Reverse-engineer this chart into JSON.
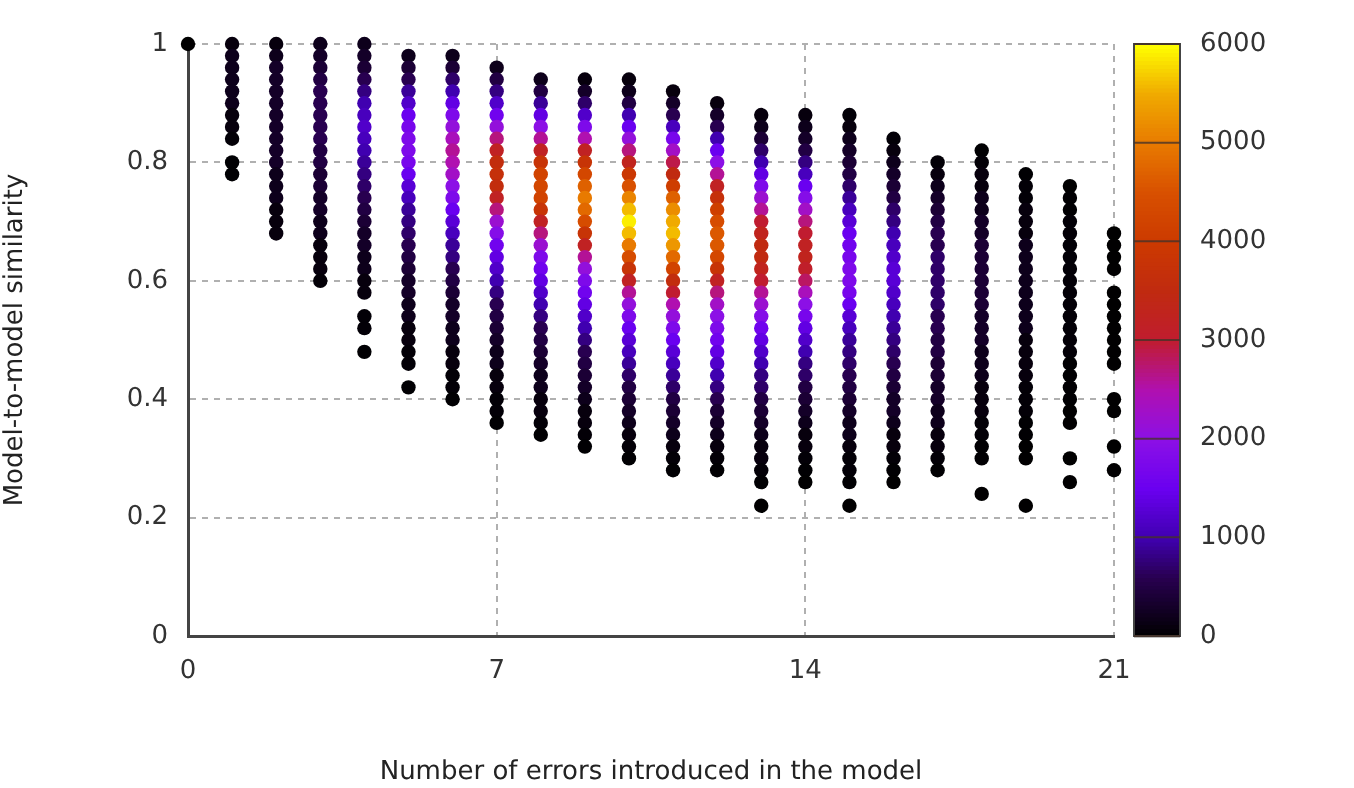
{
  "chart_data": {
    "type": "scatter",
    "xlabel": "Number of errors introduced in the model",
    "ylabel": "Model-to-model similarity",
    "xlim": [
      0,
      21
    ],
    "xticks": [
      0,
      7,
      14,
      21
    ],
    "ylim": [
      0,
      1
    ],
    "yticks": [
      0,
      {
        "value": 0.2,
        "label": "0.2"
      },
      {
        "value": 0.4,
        "label": "0.4"
      },
      {
        "value": 0.6,
        "label": "0.6"
      },
      {
        "value": 0.8,
        "label": "0.8"
      },
      1
    ],
    "grid": true,
    "marker": "circle",
    "clim": [
      0,
      6000
    ],
    "cticks": [
      0,
      1000,
      2000,
      3000,
      4000,
      5000,
      6000
    ],
    "x": [
      0,
      1,
      1,
      1,
      1,
      1,
      1,
      1,
      1,
      1,
      1,
      1,
      2,
      2,
      2,
      2,
      2,
      2,
      2,
      2,
      2,
      2,
      2,
      2,
      2,
      2,
      2,
      2,
      2,
      3,
      3,
      3,
      3,
      3,
      3,
      3,
      3,
      3,
      3,
      3,
      3,
      3,
      3,
      3,
      3,
      3,
      3,
      3,
      3,
      3,
      4,
      4,
      4,
      4,
      4,
      4,
      4,
      4,
      4,
      4,
      4,
      4,
      4,
      4,
      4,
      4,
      4,
      4,
      4,
      4,
      4,
      4,
      4,
      4,
      4,
      5,
      5,
      5,
      5,
      5,
      5,
      5,
      5,
      5,
      5,
      5,
      5,
      5,
      5,
      5,
      5,
      5,
      5,
      5,
      5,
      5,
      5,
      5,
      5,
      5,
      5,
      5,
      5,
      6,
      6,
      6,
      6,
      6,
      6,
      6,
      6,
      6,
      6,
      6,
      6,
      6,
      6,
      6,
      6,
      6,
      6,
      6,
      6,
      6,
      6,
      6,
      6,
      6,
      6,
      6,
      6,
      6,
      6,
      7,
      7,
      7,
      7,
      7,
      7,
      7,
      7,
      7,
      7,
      7,
      7,
      7,
      7,
      7,
      7,
      7,
      7,
      7,
      7,
      7,
      7,
      7,
      7,
      7,
      7,
      7,
      7,
      7,
      7,
      7,
      8,
      8,
      8,
      8,
      8,
      8,
      8,
      8,
      8,
      8,
      8,
      8,
      8,
      8,
      8,
      8,
      8,
      8,
      8,
      8,
      8,
      8,
      8,
      8,
      8,
      8,
      8,
      8,
      8,
      8,
      8,
      9,
      9,
      9,
      9,
      9,
      9,
      9,
      9,
      9,
      9,
      9,
      9,
      9,
      9,
      9,
      9,
      9,
      9,
      9,
      9,
      9,
      9,
      9,
      9,
      9,
      9,
      9,
      9,
      9,
      9,
      9,
      9,
      10,
      10,
      10,
      10,
      10,
      10,
      10,
      10,
      10,
      10,
      10,
      10,
      10,
      10,
      10,
      10,
      10,
      10,
      10,
      10,
      10,
      10,
      10,
      10,
      10,
      10,
      10,
      10,
      10,
      10,
      10,
      10,
      10,
      11,
      11,
      11,
      11,
      11,
      11,
      11,
      11,
      11,
      11,
      11,
      11,
      11,
      11,
      11,
      11,
      11,
      11,
      11,
      11,
      11,
      11,
      11,
      11,
      11,
      11,
      11,
      11,
      11,
      11,
      11,
      11,
      11,
      12,
      12,
      12,
      12,
      12,
      12,
      12,
      12,
      12,
      12,
      12,
      12,
      12,
      12,
      12,
      12,
      12,
      12,
      12,
      12,
      12,
      12,
      12,
      12,
      12,
      12,
      12,
      12,
      12,
      12,
      12,
      12,
      13,
      13,
      13,
      13,
      13,
      13,
      13,
      13,
      13,
      13,
      13,
      13,
      13,
      13,
      13,
      13,
      13,
      13,
      13,
      13,
      13,
      13,
      13,
      13,
      13,
      13,
      13,
      13,
      13,
      13,
      13,
      13,
      13,
      14,
      14,
      14,
      14,
      14,
      14,
      14,
      14,
      14,
      14,
      14,
      14,
      14,
      14,
      14,
      14,
      14,
      14,
      14,
      14,
      14,
      14,
      14,
      14,
      14,
      14,
      14,
      14,
      14,
      14,
      14,
      14,
      15,
      15,
      15,
      15,
      15,
      15,
      15,
      15,
      15,
      15,
      15,
      15,
      15,
      15,
      15,
      15,
      15,
      15,
      15,
      15,
      15,
      15,
      15,
      15,
      15,
      15,
      15,
      15,
      15,
      15,
      15,
      15,
      15,
      16,
      16,
      16,
      16,
      16,
      16,
      16,
      16,
      16,
      16,
      16,
      16,
      16,
      16,
      16,
      16,
      16,
      16,
      16,
      16,
      16,
      16,
      16,
      16,
      16,
      16,
      16,
      16,
      16,
      16,
      17,
      17,
      17,
      17,
      17,
      17,
      17,
      17,
      17,
      17,
      17,
      17,
      17,
      17,
      17,
      17,
      17,
      17,
      17,
      17,
      17,
      17,
      17,
      17,
      17,
      17,
      17,
      18,
      18,
      18,
      18,
      18,
      18,
      18,
      18,
      18,
      18,
      18,
      18,
      18,
      18,
      18,
      18,
      18,
      18,
      18,
      18,
      18,
      18,
      18,
      18,
      18,
      18,
      18,
      18,
      19,
      19,
      19,
      19,
      19,
      19,
      19,
      19,
      19,
      19,
      19,
      19,
      19,
      19,
      19,
      19,
      19,
      19,
      19,
      19,
      19,
      19,
      19,
      19,
      19,
      19,
      20,
      20,
      20,
      20,
      20,
      20,
      20,
      20,
      20,
      20,
      20,
      20,
      20,
      20,
      20,
      20,
      20,
      20,
      20,
      20,
      20,
      20,
      20,
      21,
      21,
      21,
      21,
      21,
      21,
      21,
      21,
      21,
      21,
      21,
      21,
      21,
      21,
      21
    ],
    "values": [
      1.0,
      1.0,
      0.98,
      0.96,
      0.94,
      0.92,
      0.9,
      0.88,
      0.86,
      0.84,
      0.8,
      0.78,
      1.0,
      0.98,
      0.96,
      0.94,
      0.92,
      0.9,
      0.88,
      0.86,
      0.84,
      0.82,
      0.8,
      0.78,
      0.76,
      0.74,
      0.72,
      0.7,
      0.68,
      1.0,
      0.98,
      0.96,
      0.94,
      0.92,
      0.9,
      0.88,
      0.86,
      0.84,
      0.82,
      0.8,
      0.78,
      0.76,
      0.74,
      0.72,
      0.7,
      0.68,
      0.66,
      0.64,
      0.62,
      0.6,
      1.0,
      0.98,
      0.96,
      0.94,
      0.92,
      0.9,
      0.88,
      0.86,
      0.84,
      0.82,
      0.8,
      0.78,
      0.76,
      0.74,
      0.72,
      0.7,
      0.68,
      0.66,
      0.64,
      0.62,
      0.6,
      0.58,
      0.54,
      0.52,
      0.48,
      0.98,
      0.96,
      0.94,
      0.92,
      0.9,
      0.88,
      0.86,
      0.84,
      0.82,
      0.8,
      0.78,
      0.76,
      0.74,
      0.72,
      0.7,
      0.68,
      0.66,
      0.64,
      0.62,
      0.6,
      0.58,
      0.56,
      0.54,
      0.52,
      0.5,
      0.48,
      0.46,
      0.42,
      0.98,
      0.96,
      0.94,
      0.92,
      0.9,
      0.88,
      0.86,
      0.84,
      0.82,
      0.8,
      0.78,
      0.76,
      0.74,
      0.72,
      0.7,
      0.68,
      0.66,
      0.64,
      0.62,
      0.6,
      0.58,
      0.56,
      0.54,
      0.52,
      0.5,
      0.48,
      0.46,
      0.44,
      0.42,
      0.4,
      0.96,
      0.94,
      0.92,
      0.9,
      0.88,
      0.86,
      0.84,
      0.82,
      0.8,
      0.78,
      0.76,
      0.74,
      0.72,
      0.7,
      0.68,
      0.66,
      0.64,
      0.62,
      0.6,
      0.58,
      0.56,
      0.54,
      0.52,
      0.5,
      0.48,
      0.46,
      0.44,
      0.42,
      0.4,
      0.38,
      0.36,
      0.94,
      0.92,
      0.9,
      0.88,
      0.86,
      0.84,
      0.82,
      0.8,
      0.78,
      0.76,
      0.74,
      0.72,
      0.7,
      0.68,
      0.66,
      0.64,
      0.62,
      0.6,
      0.58,
      0.56,
      0.54,
      0.52,
      0.5,
      0.48,
      0.46,
      0.44,
      0.42,
      0.4,
      0.38,
      0.36,
      0.34,
      0.94,
      0.92,
      0.9,
      0.88,
      0.86,
      0.84,
      0.82,
      0.8,
      0.78,
      0.76,
      0.74,
      0.72,
      0.7,
      0.68,
      0.66,
      0.64,
      0.62,
      0.6,
      0.58,
      0.56,
      0.54,
      0.52,
      0.5,
      0.48,
      0.46,
      0.44,
      0.42,
      0.4,
      0.38,
      0.36,
      0.34,
      0.32,
      0.94,
      0.92,
      0.9,
      0.88,
      0.86,
      0.84,
      0.82,
      0.8,
      0.78,
      0.76,
      0.74,
      0.72,
      0.7,
      0.68,
      0.66,
      0.64,
      0.62,
      0.6,
      0.58,
      0.56,
      0.54,
      0.52,
      0.5,
      0.48,
      0.46,
      0.44,
      0.42,
      0.4,
      0.38,
      0.36,
      0.34,
      0.32,
      0.3,
      0.92,
      0.9,
      0.88,
      0.86,
      0.84,
      0.82,
      0.8,
      0.78,
      0.76,
      0.74,
      0.72,
      0.7,
      0.68,
      0.66,
      0.64,
      0.62,
      0.6,
      0.58,
      0.56,
      0.54,
      0.52,
      0.5,
      0.48,
      0.46,
      0.44,
      0.42,
      0.4,
      0.38,
      0.36,
      0.34,
      0.32,
      0.3,
      0.28,
      0.9,
      0.88,
      0.86,
      0.84,
      0.82,
      0.8,
      0.78,
      0.76,
      0.74,
      0.72,
      0.7,
      0.68,
      0.66,
      0.64,
      0.62,
      0.6,
      0.58,
      0.56,
      0.54,
      0.52,
      0.5,
      0.48,
      0.46,
      0.44,
      0.42,
      0.4,
      0.38,
      0.36,
      0.34,
      0.32,
      0.3,
      0.28,
      0.88,
      0.86,
      0.84,
      0.82,
      0.8,
      0.78,
      0.76,
      0.74,
      0.72,
      0.7,
      0.68,
      0.66,
      0.64,
      0.62,
      0.6,
      0.58,
      0.56,
      0.54,
      0.52,
      0.5,
      0.48,
      0.46,
      0.44,
      0.42,
      0.4,
      0.38,
      0.36,
      0.34,
      0.32,
      0.3,
      0.28,
      0.26,
      0.22,
      0.88,
      0.86,
      0.84,
      0.82,
      0.8,
      0.78,
      0.76,
      0.74,
      0.72,
      0.7,
      0.68,
      0.66,
      0.64,
      0.62,
      0.6,
      0.58,
      0.56,
      0.54,
      0.52,
      0.5,
      0.48,
      0.46,
      0.44,
      0.42,
      0.4,
      0.38,
      0.36,
      0.34,
      0.32,
      0.3,
      0.28,
      0.26,
      0.88,
      0.86,
      0.84,
      0.82,
      0.8,
      0.78,
      0.76,
      0.74,
      0.72,
      0.7,
      0.68,
      0.66,
      0.64,
      0.62,
      0.6,
      0.58,
      0.56,
      0.54,
      0.52,
      0.5,
      0.48,
      0.46,
      0.44,
      0.42,
      0.4,
      0.38,
      0.36,
      0.34,
      0.32,
      0.3,
      0.28,
      0.26,
      0.22,
      0.84,
      0.82,
      0.8,
      0.78,
      0.76,
      0.74,
      0.72,
      0.7,
      0.68,
      0.66,
      0.64,
      0.62,
      0.6,
      0.58,
      0.56,
      0.54,
      0.52,
      0.5,
      0.48,
      0.46,
      0.44,
      0.42,
      0.4,
      0.38,
      0.36,
      0.34,
      0.32,
      0.3,
      0.28,
      0.26,
      0.8,
      0.78,
      0.76,
      0.74,
      0.72,
      0.7,
      0.68,
      0.66,
      0.64,
      0.62,
      0.6,
      0.58,
      0.56,
      0.54,
      0.52,
      0.5,
      0.48,
      0.46,
      0.44,
      0.42,
      0.4,
      0.38,
      0.36,
      0.34,
      0.32,
      0.3,
      0.28,
      0.82,
      0.8,
      0.78,
      0.76,
      0.74,
      0.72,
      0.7,
      0.68,
      0.66,
      0.64,
      0.62,
      0.6,
      0.58,
      0.56,
      0.54,
      0.52,
      0.5,
      0.48,
      0.46,
      0.44,
      0.42,
      0.4,
      0.38,
      0.36,
      0.34,
      0.32,
      0.3,
      0.24,
      0.78,
      0.76,
      0.74,
      0.72,
      0.7,
      0.68,
      0.66,
      0.64,
      0.62,
      0.6,
      0.58,
      0.56,
      0.54,
      0.52,
      0.5,
      0.48,
      0.46,
      0.44,
      0.42,
      0.4,
      0.38,
      0.36,
      0.34,
      0.32,
      0.3,
      0.22,
      0.76,
      0.74,
      0.72,
      0.7,
      0.68,
      0.66,
      0.64,
      0.62,
      0.6,
      0.58,
      0.56,
      0.54,
      0.52,
      0.5,
      0.48,
      0.46,
      0.44,
      0.42,
      0.4,
      0.38,
      0.36,
      0.3,
      0.26,
      0.68,
      0.66,
      0.64,
      0.62,
      0.58,
      0.56,
      0.54,
      0.52,
      0.5,
      0.48,
      0.46,
      0.4,
      0.38,
      0.32,
      0.28
    ],
    "cvalues": [
      10,
      100,
      200,
      200,
      200,
      200,
      200,
      100,
      100,
      50,
      20,
      20,
      100,
      200,
      300,
      300,
      300,
      300,
      300,
      300,
      300,
      300,
      300,
      200,
      200,
      200,
      100,
      100,
      100,
      200,
      300,
      400,
      500,
      600,
      600,
      600,
      600,
      600,
      500,
      500,
      400,
      400,
      300,
      300,
      200,
      200,
      100,
      100,
      100,
      50,
      200,
      300,
      400,
      600,
      800,
      1000,
      1100,
      1200,
      1100,
      1000,
      900,
      800,
      700,
      600,
      500,
      400,
      300,
      300,
      200,
      200,
      100,
      100,
      50,
      50,
      20,
      200,
      400,
      600,
      900,
      1200,
      1500,
      1700,
      1800,
      1800,
      1700,
      1500,
      1300,
      1100,
      900,
      800,
      700,
      600,
      500,
      400,
      300,
      300,
      200,
      200,
      100,
      100,
      50,
      50,
      20,
      200,
      400,
      700,
      1000,
      1400,
      1800,
      2100,
      2400,
      2600,
      2500,
      2300,
      2000,
      1800,
      1500,
      1300,
      1100,
      900,
      800,
      600,
      500,
      400,
      300,
      300,
      200,
      200,
      100,
      100,
      50,
      50,
      20,
      200,
      500,
      800,
      1200,
      1600,
      2100,
      2700,
      3200,
      3600,
      3700,
      3600,
      3200,
      2700,
      2200,
      1900,
      1600,
      1400,
      1200,
      1000,
      800,
      600,
      500,
      400,
      300,
      200,
      200,
      100,
      100,
      50,
      50,
      20,
      200,
      500,
      900,
      1400,
      2000,
      2600,
      3200,
      3800,
      4200,
      4300,
      4200,
      3800,
      3200,
      2700,
      2200,
      1800,
      1600,
      1400,
      1200,
      1000,
      800,
      600,
      500,
      400,
      300,
      200,
      200,
      100,
      100,
      50,
      20,
      100,
      300,
      700,
      1200,
      1800,
      2500,
      3200,
      3800,
      4300,
      4700,
      5000,
      4800,
      4400,
      3800,
      3200,
      2600,
      2100,
      1800,
      1600,
      1400,
      1200,
      1000,
      800,
      600,
      500,
      400,
      300,
      200,
      100,
      100,
      50,
      20,
      100,
      200,
      500,
      1000,
      1500,
      2100,
      2700,
      3300,
      3900,
      4500,
      5100,
      5600,
      5900,
      5600,
      5000,
      4400,
      3800,
      3200,
      2600,
      2100,
      1800,
      1500,
      1300,
      1100,
      900,
      700,
      500,
      400,
      300,
      200,
      100,
      50,
      20,
      100,
      300,
      600,
      1100,
      1700,
      2300,
      2900,
      3500,
      4100,
      4700,
      5200,
      5500,
      5600,
      5300,
      4800,
      4200,
      3600,
      3000,
      2500,
      2100,
      1800,
      1500,
      1300,
      1100,
      900,
      700,
      500,
      400,
      300,
      200,
      100,
      50,
      20,
      100,
      300,
      600,
      1000,
      1500,
      2000,
      2600,
      3200,
      3700,
      4100,
      4400,
      4600,
      4600,
      4300,
      3800,
      3200,
      2700,
      2300,
      2000,
      1800,
      1600,
      1400,
      1200,
      1000,
      800,
      600,
      400,
      300,
      200,
      100,
      50,
      20,
      100,
      200,
      400,
      700,
      1000,
      1400,
      1800,
      2200,
      2600,
      3000,
      3300,
      3500,
      3500,
      3300,
      3000,
      2600,
      2200,
      1900,
      1600,
      1400,
      1200,
      1000,
      800,
      700,
      500,
      400,
      300,
      200,
      100,
      100,
      50,
      20,
      10,
      100,
      200,
      300,
      500,
      800,
      1100,
      1500,
      1900,
      2300,
      2700,
      3000,
      3200,
      3300,
      3100,
      2800,
      2400,
      2000,
      1700,
      1400,
      1200,
      1000,
      800,
      700,
      500,
      400,
      300,
      200,
      100,
      100,
      50,
      20,
      10,
      50,
      100,
      200,
      300,
      400,
      500,
      700,
      900,
      1100,
      1300,
      1500,
      1600,
      1700,
      1800,
      1800,
      1700,
      1500,
      1300,
      1100,
      900,
      800,
      700,
      600,
      500,
      400,
      300,
      200,
      200,
      100,
      50,
      50,
      20,
      10,
      50,
      100,
      200,
      300,
      400,
      500,
      700,
      800,
      1000,
      1100,
      1200,
      1300,
      1300,
      1200,
      1100,
      1000,
      900,
      800,
      700,
      600,
      500,
      400,
      300,
      300,
      200,
      100,
      100,
      50,
      20,
      10,
      50,
      100,
      200,
      300,
      400,
      500,
      600,
      600,
      700,
      700,
      700,
      700,
      700,
      600,
      600,
      500,
      500,
      400,
      400,
      300,
      300,
      200,
      200,
      100,
      100,
      50,
      20,
      20,
      50,
      100,
      100,
      200,
      200,
      300,
      300,
      400,
      400,
      400,
      400,
      400,
      400,
      300,
      300,
      300,
      200,
      200,
      200,
      100,
      100,
      100,
      50,
      50,
      20,
      20,
      10,
      20,
      50,
      50,
      100,
      100,
      100,
      200,
      200,
      200,
      200,
      200,
      200,
      200,
      200,
      100,
      100,
      100,
      100,
      50,
      50,
      50,
      20,
      20,
      10,
      10,
      10,
      10,
      20,
      20,
      50,
      50,
      50,
      50,
      50,
      50,
      50,
      50,
      50,
      50,
      50,
      50,
      20,
      20,
      20,
      20,
      10,
      10,
      10,
      10,
      10,
      10,
      10,
      10,
      10,
      10,
      10,
      10,
      10,
      10,
      10,
      10,
      10,
      10,
      10
    ]
  }
}
